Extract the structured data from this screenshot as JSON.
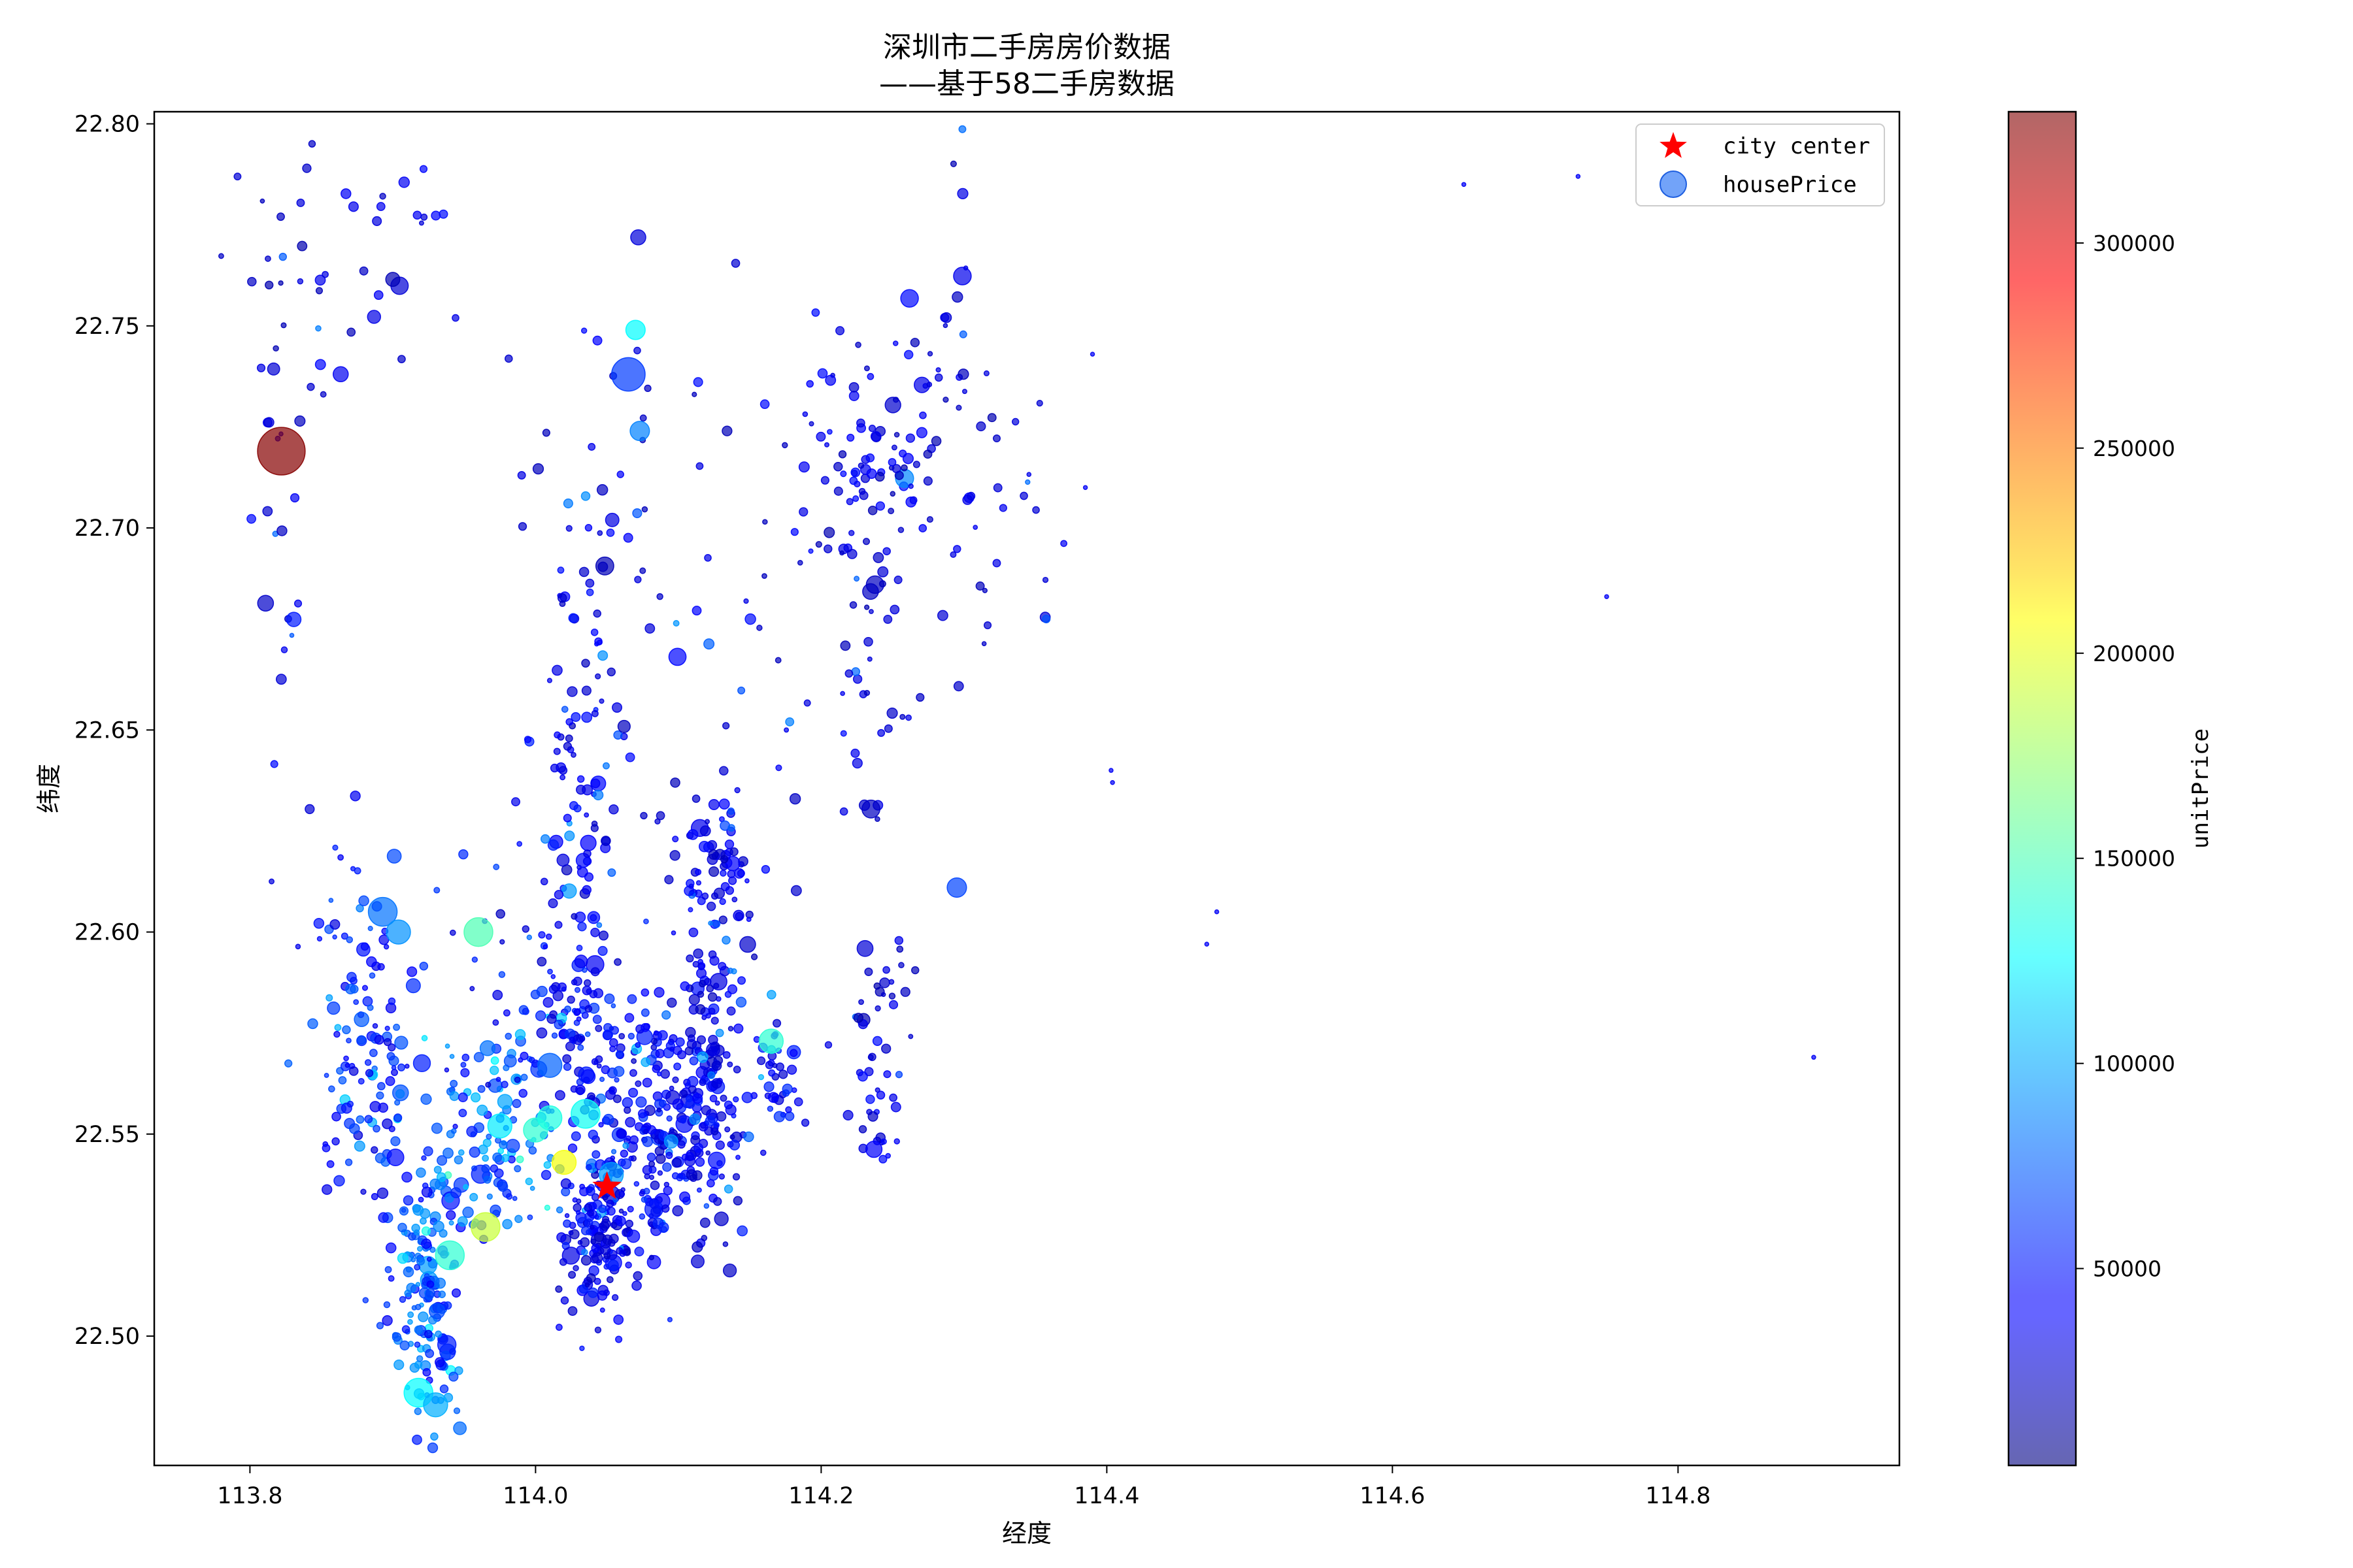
{
  "chart_data": {
    "type": "scatter",
    "title_line1": "深圳市二手房房价数据",
    "title_line2": "——基于58二手房数据",
    "xlabel": "经度",
    "ylabel": "纬度",
    "xlim": [
      113.733,
      114.955
    ],
    "ylim": [
      22.468,
      22.803
    ],
    "x_ticks": [
      "113.8",
      "114.0",
      "114.2",
      "114.4",
      "114.6",
      "114.8"
    ],
    "x_tick_values": [
      113.8,
      114.0,
      114.2,
      114.4,
      114.6,
      114.8
    ],
    "y_ticks": [
      "22.50",
      "22.55",
      "22.60",
      "22.65",
      "22.70",
      "22.75",
      "22.80"
    ],
    "y_tick_values": [
      22.5,
      22.55,
      22.6,
      22.65,
      22.7,
      22.75,
      22.8
    ],
    "legend": {
      "placement": "upper right",
      "entries": [
        {
          "label": "city center",
          "marker": "star",
          "color": "#ff0000"
        },
        {
          "label": "housePrice",
          "marker": "circle",
          "color": "#4f8cf7"
        }
      ]
    },
    "colorbar": {
      "label": "unitPrice",
      "colormap": "jet",
      "alpha": 0.6,
      "range": [
        2000,
        332000
      ],
      "ticks": [
        "50000",
        "100000",
        "150000",
        "200000",
        "250000",
        "300000"
      ],
      "tick_values": [
        50000,
        100000,
        150000,
        200000,
        250000,
        300000
      ]
    },
    "city_center": {
      "x": 114.05,
      "y": 22.537
    },
    "notable_points": [
      {
        "x": 113.822,
        "y": 22.719,
        "unitPrice": 330000,
        "size": 9
      },
      {
        "x": 114.065,
        "y": 22.738,
        "unitPrice": 62000,
        "size": 6
      },
      {
        "x": 113.96,
        "y": 22.6,
        "unitPrice": 150000,
        "size": 5
      },
      {
        "x": 113.893,
        "y": 22.605,
        "unitPrice": 80000,
        "size": 5
      },
      {
        "x": 114.07,
        "y": 22.749,
        "unitPrice": 125000,
        "size": 3
      },
      {
        "x": 114.073,
        "y": 22.724,
        "unitPrice": 85000,
        "size": 3
      },
      {
        "x": 114.02,
        "y": 22.543,
        "unitPrice": 205000,
        "size": 4
      },
      {
        "x": 113.965,
        "y": 22.527,
        "unitPrice": 190000,
        "size": 5
      },
      {
        "x": 113.94,
        "y": 22.52,
        "unitPrice": 140000,
        "size": 5
      },
      {
        "x": 113.918,
        "y": 22.486,
        "unitPrice": 125000,
        "size": 5
      },
      {
        "x": 113.93,
        "y": 22.483,
        "unitPrice": 100000,
        "size": 4
      },
      {
        "x": 114.035,
        "y": 22.555,
        "unitPrice": 130000,
        "size": 5
      },
      {
        "x": 114.165,
        "y": 22.573,
        "unitPrice": 140000,
        "size": 4
      },
      {
        "x": 114.053,
        "y": 22.54,
        "unitPrice": 95000,
        "size": 4
      },
      {
        "x": 113.904,
        "y": 22.6,
        "unitPrice": 90000,
        "size": 4
      },
      {
        "x": 114.01,
        "y": 22.567,
        "unitPrice": 75000,
        "size": 4
      },
      {
        "x": 114.295,
        "y": 22.611,
        "unitPrice": 65000,
        "size": 3
      },
      {
        "x": 114.0,
        "y": 22.551,
        "unitPrice": 140000,
        "size": 4
      },
      {
        "x": 113.975,
        "y": 22.552,
        "unitPrice": 120000,
        "size": 4
      },
      {
        "x": 114.01,
        "y": 22.554,
        "unitPrice": 135000,
        "size": 4
      }
    ],
    "clusters": [
      {
        "x": 113.925,
        "y": 22.51,
        "sx": 0.012,
        "sy": 0.018,
        "n": 170,
        "price": 70000
      },
      {
        "x": 113.885,
        "y": 22.568,
        "sx": 0.02,
        "sy": 0.018,
        "n": 120,
        "price": 55000
      },
      {
        "x": 113.97,
        "y": 22.55,
        "sx": 0.022,
        "sy": 0.012,
        "n": 120,
        "price": 80000
      },
      {
        "x": 114.045,
        "y": 22.525,
        "sx": 0.013,
        "sy": 0.01,
        "n": 150,
        "price": 40000
      },
      {
        "x": 114.08,
        "y": 22.55,
        "sx": 0.025,
        "sy": 0.015,
        "n": 180,
        "price": 45000
      },
      {
        "x": 114.12,
        "y": 22.555,
        "sx": 0.02,
        "sy": 0.015,
        "n": 140,
        "price": 40000
      },
      {
        "x": 114.125,
        "y": 22.605,
        "sx": 0.012,
        "sy": 0.02,
        "n": 110,
        "price": 35000
      },
      {
        "x": 114.03,
        "y": 22.635,
        "sx": 0.018,
        "sy": 0.03,
        "n": 110,
        "price": 40000
      },
      {
        "x": 114.03,
        "y": 22.575,
        "sx": 0.025,
        "sy": 0.01,
        "n": 110,
        "price": 50000
      },
      {
        "x": 114.17,
        "y": 22.565,
        "sx": 0.008,
        "sy": 0.008,
        "n": 35,
        "price": 45000
      },
      {
        "x": 114.24,
        "y": 22.72,
        "sx": 0.025,
        "sy": 0.018,
        "n": 95,
        "price": 35000
      },
      {
        "x": 114.23,
        "y": 22.675,
        "sx": 0.015,
        "sy": 0.035,
        "n": 45,
        "price": 30000
      },
      {
        "x": 114.24,
        "y": 22.585,
        "sx": 0.012,
        "sy": 0.01,
        "n": 25,
        "price": 30000
      },
      {
        "x": 114.24,
        "y": 22.555,
        "sx": 0.01,
        "sy": 0.007,
        "n": 25,
        "price": 35000
      },
      {
        "x": 113.83,
        "y": 22.755,
        "sx": 0.018,
        "sy": 0.025,
        "n": 25,
        "price": 30000
      },
      {
        "x": 113.9,
        "y": 22.77,
        "sx": 0.025,
        "sy": 0.02,
        "n": 25,
        "price": 35000
      },
      {
        "x": 113.82,
        "y": 22.685,
        "sx": 0.01,
        "sy": 0.02,
        "n": 15,
        "price": 40000
      },
      {
        "x": 114.06,
        "y": 22.7,
        "sx": 0.04,
        "sy": 0.03,
        "n": 45,
        "price": 35000
      },
      {
        "x": 114.33,
        "y": 22.69,
        "sx": 0.02,
        "sy": 0.025,
        "n": 25,
        "price": 30000
      },
      {
        "x": 114.14,
        "y": 22.66,
        "sx": 0.05,
        "sy": 0.03,
        "n": 25,
        "price": 35000
      },
      {
        "x": 113.94,
        "y": 22.6,
        "sx": 0.05,
        "sy": 0.015,
        "n": 30,
        "price": 50000
      },
      {
        "x": 114.29,
        "y": 22.735,
        "sx": 0.01,
        "sy": 0.03,
        "n": 15,
        "price": 30000
      }
    ],
    "outliers": [
      {
        "x": 114.65,
        "y": 22.785
      },
      {
        "x": 114.73,
        "y": 22.787
      },
      {
        "x": 114.75,
        "y": 22.683
      },
      {
        "x": 114.895,
        "y": 22.569
      },
      {
        "x": 114.47,
        "y": 22.597
      },
      {
        "x": 114.477,
        "y": 22.605
      },
      {
        "x": 114.404,
        "y": 22.637
      },
      {
        "x": 114.403,
        "y": 22.64
      },
      {
        "x": 114.385,
        "y": 22.71
      },
      {
        "x": 114.39,
        "y": 22.743
      }
    ]
  }
}
